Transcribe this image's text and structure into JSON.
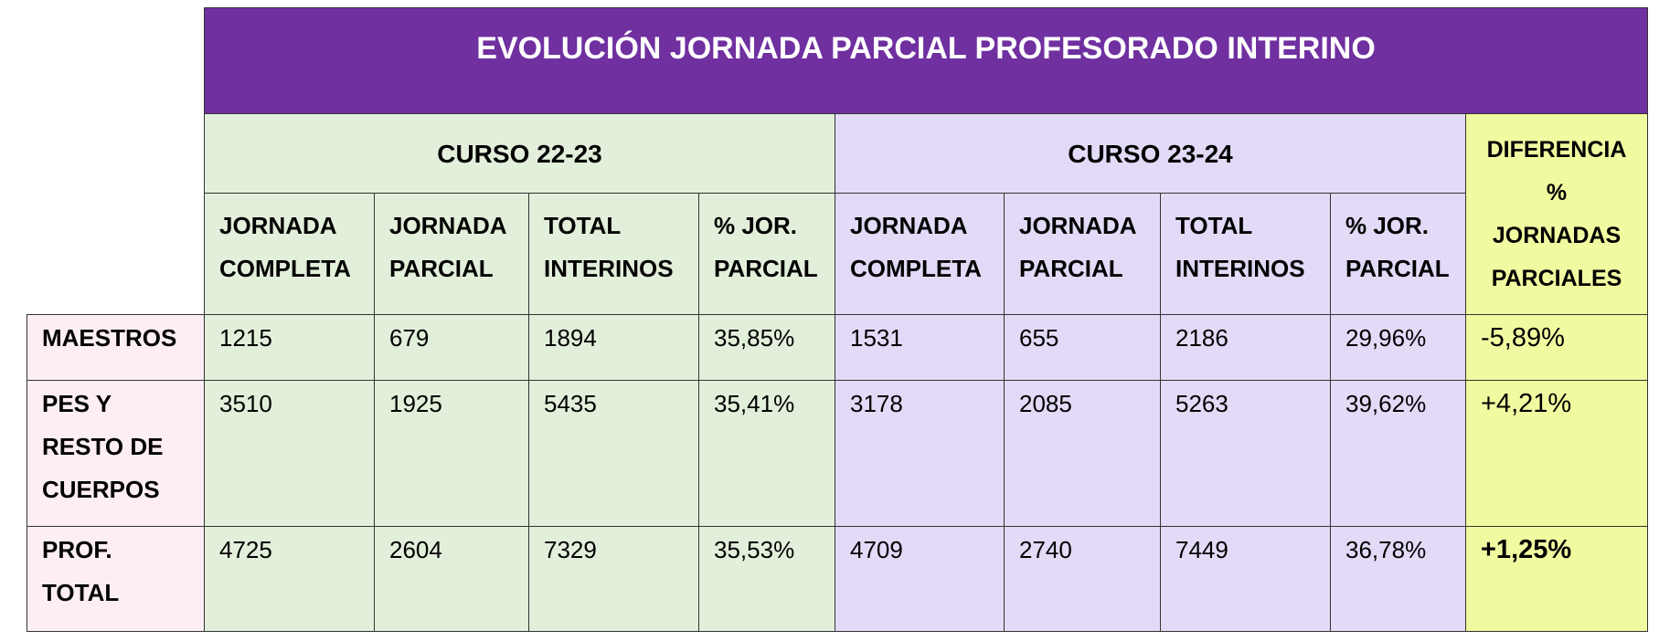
{
  "header": {
    "title": "EVOLUCIÓN JORNADA PARCIAL PROFESORADO INTERINO"
  },
  "groups": [
    {
      "label": "CURSO 22-23",
      "columns": [
        "JORNADA\nCOMPLETA",
        "JORNADA\nPARCIAL",
        "TOTAL\nINTERINOS",
        "% JOR.\nPARCIAL"
      ]
    },
    {
      "label": "CURSO 23-24",
      "columns": [
        "JORNADA\nCOMPLETA",
        "JORNADA\nPARCIAL",
        "TOTAL\nINTERINOS",
        "% JOR.\nPARCIAL"
      ]
    }
  ],
  "difference_header": "DIFERENCIA\n%\nJORNADAS\nPARCIALES",
  "rows": [
    {
      "label": "MAESTROS",
      "values": [
        "1215",
        "679",
        "1894",
        "35,85%",
        "1531",
        "655",
        "2186",
        "29,96%"
      ],
      "difference": "-5,89%"
    },
    {
      "label": "PES Y\nRESTO DE\nCUERPOS",
      "values": [
        "3510",
        "1925",
        "5435",
        "35,41%",
        "3178",
        "2085",
        "5263",
        "39,62%"
      ],
      "difference": "+4,21%"
    },
    {
      "label": "PROF.\nTOTAL",
      "values": [
        "4725",
        "2604",
        "7329",
        "35,53%",
        "4709",
        "2740",
        "7449",
        "36,78%"
      ],
      "difference": "+1,25%"
    }
  ]
}
